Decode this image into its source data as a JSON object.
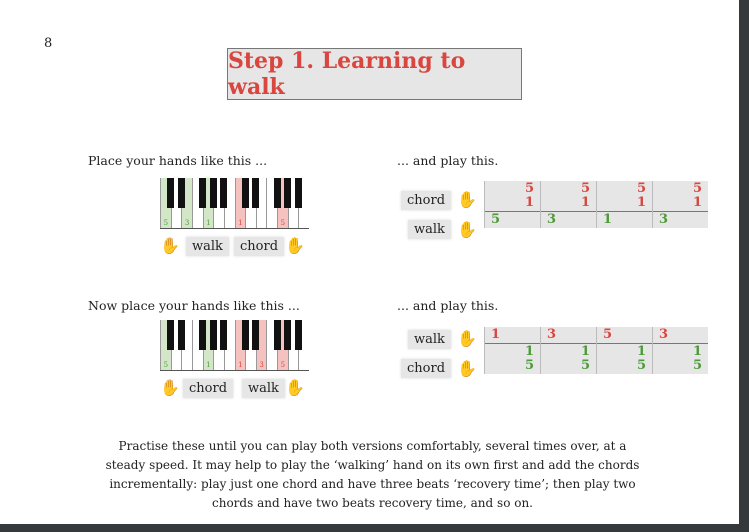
{
  "page_number": "8",
  "title": "Step 1.  Learning to walk",
  "colors": {
    "accent": "#d9463f",
    "left_hand": "#4e9a3a",
    "right_hand": "#d9463f",
    "left_key": "#d3e6c8",
    "right_key": "#f6c2c0"
  },
  "section1": {
    "left_caption": "Place your hands like this ...",
    "right_caption": "... and play this.",
    "keys": [
      {
        "i": 0,
        "h": "L",
        "f": "5"
      },
      {
        "i": 2,
        "h": "L",
        "f": "3"
      },
      {
        "i": 4,
        "h": "L",
        "f": "1"
      },
      {
        "i": 7,
        "h": "R",
        "f": "1"
      },
      {
        "i": 11,
        "h": "R",
        "f": "5"
      }
    ],
    "labels": [
      "walk",
      "chord"
    ],
    "rows": [
      {
        "label": "chord",
        "hand": "R",
        "values": [
          [
            "5",
            "1"
          ],
          [
            "5",
            "1"
          ],
          [
            "5",
            "1"
          ],
          [
            "5",
            "1"
          ]
        ]
      },
      {
        "label": "walk",
        "hand": "L",
        "values": [
          [
            "5"
          ],
          [
            "3"
          ],
          [
            "1"
          ],
          [
            "3"
          ]
        ]
      }
    ]
  },
  "section2": {
    "left_caption": "Now place your hands like this ...",
    "right_caption": "... and play this.",
    "keys": [
      {
        "i": 0,
        "h": "L",
        "f": "5"
      },
      {
        "i": 4,
        "h": "L",
        "f": "1"
      },
      {
        "i": 7,
        "h": "R",
        "f": "1"
      },
      {
        "i": 9,
        "h": "R",
        "f": "3"
      },
      {
        "i": 11,
        "h": "R",
        "f": "5"
      }
    ],
    "labels": [
      "chord",
      "walk"
    ],
    "rows": [
      {
        "label": "walk",
        "hand": "R",
        "values": [
          [
            "1"
          ],
          [
            "3"
          ],
          [
            "5"
          ],
          [
            "3"
          ]
        ]
      },
      {
        "label": "chord",
        "hand": "L",
        "values": [
          [
            "1",
            "5"
          ],
          [
            "1",
            "5"
          ],
          [
            "1",
            "5"
          ],
          [
            "1",
            "5"
          ]
        ]
      }
    ]
  },
  "paragraph": "Practise these until you can play both versions comfortably, several times over, at a steady speed.  It may help to play the ‘walking’ hand on its own first and add the chords incrementally: play just one chord and have three beats ‘recovery time’; then play two chords and have two beats recovery time, and so on."
}
